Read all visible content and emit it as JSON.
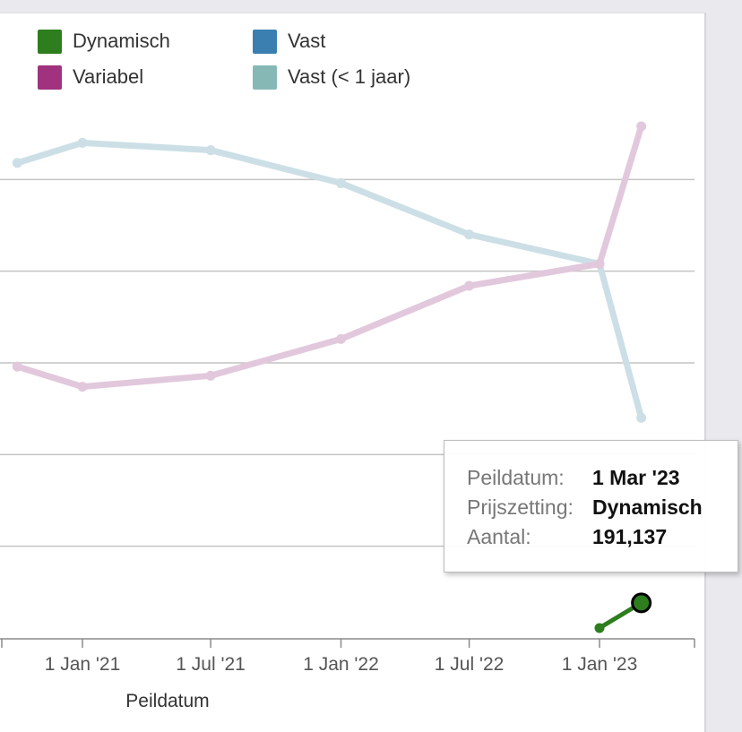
{
  "colors": {
    "dynamisch": "#2e7d1e",
    "vast": "#3a7fb0",
    "variabel": "#a0327f",
    "vast_lt1": "#86b9b6",
    "vast_line_faded": "#ccdfe6",
    "variabel_line_faded": "#e2c8dc",
    "grid": "#c4c4c4",
    "axis": "#8a8a8a"
  },
  "chart_data": {
    "type": "line",
    "title": "",
    "xlabel": "Peildatum",
    "ylabel": "",
    "x_ticks": [
      "1 Jan '21",
      "1 Jul '21",
      "1 Jan '22",
      "1 Jul '22",
      "1 Jan '23"
    ],
    "x": [
      "2020-10-01",
      "2021-01-01",
      "2021-07-01",
      "2022-01-01",
      "2022-07-01",
      "2023-01-01",
      "2023-03-01"
    ],
    "ylim": [
      0,
      3000000
    ],
    "gridlines": [
      500000,
      1000000,
      1500000,
      2000000,
      2500000
    ],
    "legend": [
      "Dynamisch",
      "Vast",
      "Variabel",
      "Vast (< 1 jaar)"
    ],
    "legend_position": "top",
    "series": [
      {
        "name": "Vast (< 1 jaar)",
        "values": [
          2590000,
          2700000,
          2660000,
          2480000,
          2200000,
          2040000,
          1200000
        ]
      },
      {
        "name": "Variabel",
        "values": [
          1480000,
          1370000,
          1430000,
          1630000,
          1920000,
          2040000,
          2790000
        ]
      },
      {
        "name": "Dynamisch",
        "values": [
          null,
          null,
          null,
          null,
          null,
          54000,
          191137
        ]
      }
    ]
  },
  "tooltip": {
    "date_label": "Peildatum:",
    "date_value": "1 Mar '23",
    "pricing_label": "Prijszetting:",
    "pricing_value": "Dynamisch",
    "count_label": "Aantal:",
    "count_value": "191,137"
  }
}
